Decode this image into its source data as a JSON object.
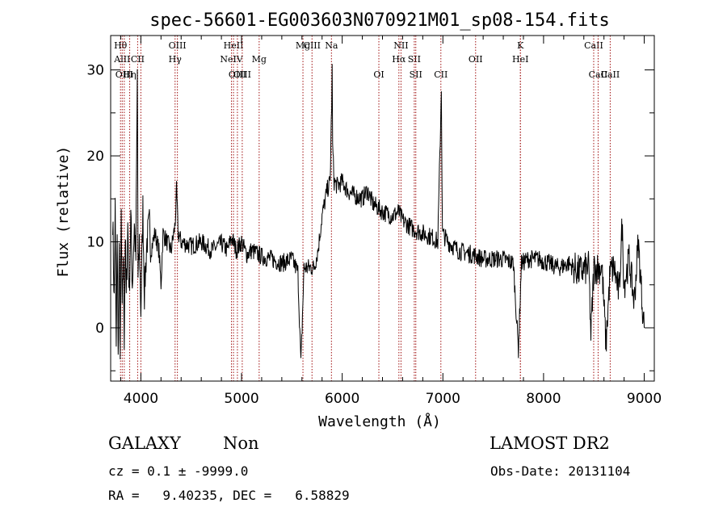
{
  "chart_data": {
    "type": "line",
    "title": "spec-56601-EG003603N070921M01_sp08-154.fits",
    "xlabel": "Wavelength (Å)",
    "ylabel": "Flux (relative)",
    "xlim": [
      3700,
      9100
    ],
    "ylim": [
      -6.2,
      34
    ],
    "xticks": [
      4000,
      5000,
      6000,
      7000,
      8000,
      9000
    ],
    "yticks": [
      0,
      10,
      20,
      30
    ],
    "grid": false,
    "spectrum_anchors": [
      [
        3720,
        13
      ],
      [
        3735,
        3
      ],
      [
        3745,
        14
      ],
      [
        3755,
        -3
      ],
      [
        3765,
        12
      ],
      [
        3775,
        -4
      ],
      [
        3785,
        10
      ],
      [
        3795,
        -2
      ],
      [
        3805,
        13
      ],
      [
        3815,
        1
      ],
      [
        3825,
        9
      ],
      [
        3835,
        -1
      ],
      [
        3845,
        11
      ],
      [
        3855,
        3
      ],
      [
        3870,
        12
      ],
      [
        3885,
        4
      ],
      [
        3900,
        13
      ],
      [
        3915,
        5
      ],
      [
        3935,
        12
      ],
      [
        3950,
        8
      ],
      [
        3965,
        30
      ],
      [
        3972,
        5
      ],
      [
        3985,
        10
      ],
      [
        4000,
        2
      ],
      [
        4020,
        14
      ],
      [
        4035,
        4
      ],
      [
        4060,
        10
      ],
      [
        4085,
        12
      ],
      [
        4100,
        9
      ],
      [
        4140,
        11
      ],
      [
        4180,
        9
      ],
      [
        4200,
        5
      ],
      [
        4220,
        11
      ],
      [
        4260,
        10
      ],
      [
        4300,
        9
      ],
      [
        4340,
        12
      ],
      [
        4355,
        16
      ],
      [
        4370,
        11
      ],
      [
        4400,
        10
      ],
      [
        4500,
        9.5
      ],
      [
        4600,
        10
      ],
      [
        4700,
        9
      ],
      [
        4800,
        9.8
      ],
      [
        4860,
        9
      ],
      [
        4900,
        10.5
      ],
      [
        4950,
        9
      ],
      [
        5000,
        10
      ],
      [
        5050,
        8.5
      ],
      [
        5100,
        9
      ],
      [
        5200,
        8.3
      ],
      [
        5300,
        8
      ],
      [
        5400,
        7.5
      ],
      [
        5500,
        8
      ],
      [
        5560,
        6.5
      ],
      [
        5590,
        -4.3
      ],
      [
        5620,
        7
      ],
      [
        5680,
        7
      ],
      [
        5720,
        7
      ],
      [
        5760,
        9
      ],
      [
        5800,
        13
      ],
      [
        5850,
        16
      ],
      [
        5880,
        17
      ],
      [
        5895,
        26
      ],
      [
        5900,
        30
      ],
      [
        5905,
        21
      ],
      [
        5920,
        17
      ],
      [
        5950,
        16.5
      ],
      [
        6000,
        17
      ],
      [
        6050,
        16
      ],
      [
        6100,
        15.5
      ],
      [
        6200,
        15
      ],
      [
        6250,
        16
      ],
      [
        6300,
        14.5
      ],
      [
        6400,
        13.5
      ],
      [
        6500,
        13
      ],
      [
        6560,
        13.5
      ],
      [
        6600,
        12.5
      ],
      [
        6700,
        11.5
      ],
      [
        6800,
        11
      ],
      [
        6900,
        10.5
      ],
      [
        6950,
        10
      ],
      [
        6970,
        20
      ],
      [
        6985,
        28
      ],
      [
        6995,
        11
      ],
      [
        7050,
        10
      ],
      [
        7150,
        9
      ],
      [
        7300,
        8.5
      ],
      [
        7400,
        8
      ],
      [
        7500,
        8
      ],
      [
        7600,
        8
      ],
      [
        7700,
        7.5
      ],
      [
        7750,
        -2.5
      ],
      [
        7780,
        7.5
      ],
      [
        7850,
        8
      ],
      [
        7950,
        8
      ],
      [
        8050,
        7.5
      ],
      [
        8150,
        7
      ],
      [
        8250,
        7.5
      ],
      [
        8350,
        6.5
      ],
      [
        8450,
        7
      ],
      [
        8470,
        -1
      ],
      [
        8500,
        7
      ],
      [
        8580,
        7
      ],
      [
        8620,
        -2
      ],
      [
        8660,
        6.5
      ],
      [
        8700,
        7
      ],
      [
        8750,
        4
      ],
      [
        8780,
        12
      ],
      [
        8800,
        5
      ],
      [
        8850,
        8
      ],
      [
        8900,
        3
      ],
      [
        8940,
        10
      ],
      [
        8980,
        3
      ],
      [
        9000,
        0
      ]
    ],
    "line_markers": [
      {
        "label": "Hθ",
        "x": 3798,
        "row": 0
      },
      {
        "label": "AlII",
        "x": 3815,
        "row": 1
      },
      {
        "label": "OIII",
        "x": 3835,
        "row": 2
      },
      {
        "label": "Hη",
        "x": 3889,
        "row": 2
      },
      {
        "label": "CII",
        "x": 3968,
        "row": 1
      },
      {
        "label": "",
        "x": 4000,
        "row": -1
      },
      {
        "label": "OIII",
        "x": 4363,
        "row": 0
      },
      {
        "label": "Hγ",
        "x": 4340,
        "row": 1
      },
      {
        "label": "HeII",
        "x": 4920,
        "row": 0
      },
      {
        "label": "NeIV",
        "x": 4900,
        "row": 1
      },
      {
        "label": "OIII",
        "x": 4959,
        "row": 2
      },
      {
        "label": "OIII",
        "x": 5007,
        "row": 2
      },
      {
        "label": "Mg",
        "x": 5175,
        "row": 1
      },
      {
        "label": "Mg",
        "x": 5610,
        "row": 0
      },
      {
        "label": "CIII",
        "x": 5700,
        "row": 0
      },
      {
        "label": "Na",
        "x": 5893,
        "row": 0
      },
      {
        "label": "OI",
        "x": 6364,
        "row": 2
      },
      {
        "label": "NII",
        "x": 6584,
        "row": 0
      },
      {
        "label": "Hα",
        "x": 6563,
        "row": 1
      },
      {
        "label": "SII",
        "x": 6716,
        "row": 1
      },
      {
        "label": "SII",
        "x": 6731,
        "row": 2
      },
      {
        "label": "CII",
        "x": 6980,
        "row": 2
      },
      {
        "label": "OII",
        "x": 7325,
        "row": 1
      },
      {
        "label": "K",
        "x": 7770,
        "row": 0
      },
      {
        "label": "HeI",
        "x": 7770,
        "row": 1
      },
      {
        "label": "CaII",
        "x": 8498,
        "row": 0
      },
      {
        "label": "CaII",
        "x": 8542,
        "row": 2
      },
      {
        "label": "CaII",
        "x": 8662,
        "row": 2
      }
    ]
  },
  "footer": {
    "object_class": "GALAXY",
    "subclass": "Non",
    "survey": "LAMOST DR2",
    "cz": "cz = 0.1 ± -9999.0",
    "obs_date": "Obs-Date: 20131104",
    "radec": "RA =   9.40235, DEC =   6.58829"
  },
  "colors": {
    "spectrum": "#000000",
    "marker": "#a01010"
  }
}
